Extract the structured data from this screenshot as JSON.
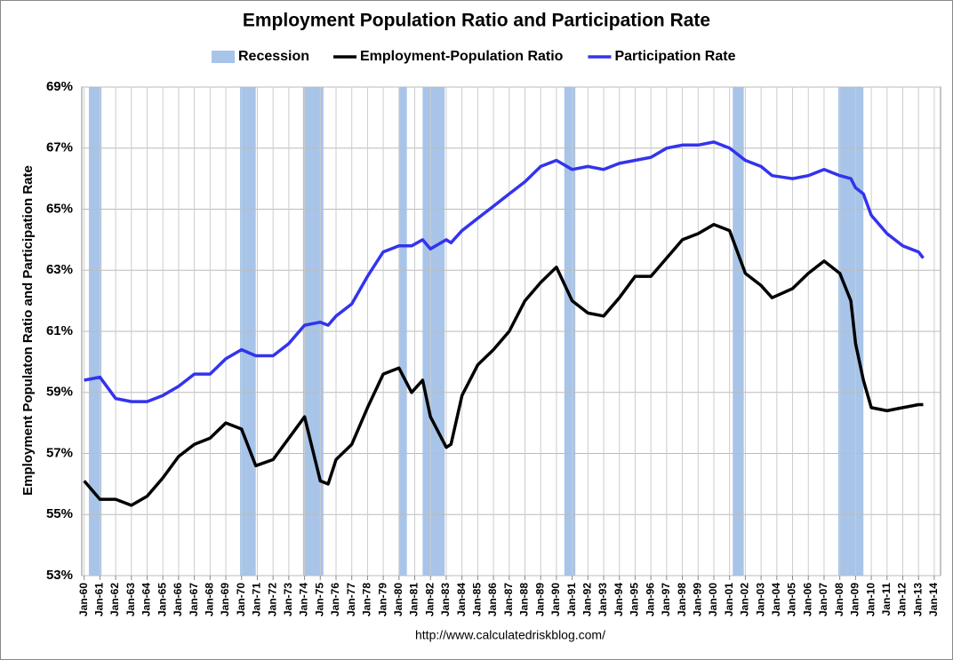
{
  "chart_data": {
    "type": "line",
    "title": "Employment Population Ratio and Participation Rate",
    "y_label": "Employment Populaton Ratio and Participation Rate",
    "source": "http://www.calculatedriskblog.com/",
    "recession": {
      "name": "Recession",
      "color": "#a8c4e8",
      "periods": [
        [
          1960.3,
          1961.1
        ],
        [
          1969.9,
          1970.9
        ],
        [
          1973.9,
          1975.2
        ],
        [
          1980.0,
          1980.5
        ],
        [
          1981.5,
          1982.9
        ],
        [
          1990.5,
          1991.2
        ],
        [
          2001.2,
          2001.9
        ],
        [
          2007.9,
          2009.5
        ]
      ]
    },
    "x": [
      1960,
      1961,
      1962,
      1963,
      1964,
      1965,
      1966,
      1967,
      1968,
      1969,
      1970,
      1970.9,
      1972,
      1973,
      1974,
      1975,
      1975.5,
      1976,
      1977,
      1978,
      1979,
      1980,
      1980.8,
      1981.5,
      1982,
      1983,
      1983.3,
      1984,
      1985,
      1986,
      1987,
      1988,
      1989,
      1990,
      1991,
      1992,
      1993,
      1994,
      1995,
      1996,
      1997,
      1998,
      1999,
      2000,
      2001,
      2002,
      2003,
      2003.7,
      2005,
      2006,
      2007,
      2008,
      2008.7,
      2009,
      2009.5,
      2010,
      2011,
      2012,
      2013,
      2013.3
    ],
    "series": [
      {
        "name": "Employment-Population Ratio",
        "color": "#000000",
        "values": [
          56.1,
          55.5,
          55.5,
          55.3,
          55.6,
          56.2,
          56.9,
          57.3,
          57.5,
          58.0,
          57.8,
          56.6,
          56.8,
          57.5,
          58.2,
          56.1,
          56.0,
          56.8,
          57.3,
          58.5,
          59.6,
          59.8,
          59.0,
          59.4,
          58.2,
          57.2,
          57.3,
          58.9,
          59.9,
          60.4,
          61.0,
          62.0,
          62.6,
          63.1,
          62.0,
          61.6,
          61.5,
          62.1,
          62.8,
          62.8,
          63.4,
          64.0,
          64.2,
          64.5,
          64.3,
          62.9,
          62.5,
          62.1,
          62.4,
          62.9,
          63.3,
          62.9,
          62.0,
          60.6,
          59.4,
          58.5,
          58.4,
          58.5,
          58.6,
          58.6
        ]
      },
      {
        "name": "Participation Rate",
        "color": "#3333ee",
        "values": [
          59.4,
          59.5,
          58.8,
          58.7,
          58.7,
          58.9,
          59.2,
          59.6,
          59.6,
          60.1,
          60.4,
          60.2,
          60.2,
          60.6,
          61.2,
          61.3,
          61.2,
          61.5,
          61.9,
          62.8,
          63.6,
          63.8,
          63.8,
          64.0,
          63.7,
          64.0,
          63.9,
          64.3,
          64.7,
          65.1,
          65.5,
          65.9,
          66.4,
          66.6,
          66.3,
          66.4,
          66.3,
          66.5,
          66.6,
          66.7,
          67.0,
          67.1,
          67.1,
          67.2,
          67.0,
          66.6,
          66.4,
          66.1,
          66.0,
          66.1,
          66.3,
          66.1,
          66.0,
          65.7,
          65.5,
          64.8,
          64.2,
          63.8,
          63.6,
          63.4
        ]
      }
    ],
    "xlim": [
      1959.85,
      2014.4
    ],
    "xticks": [
      {
        "value": 1960,
        "label": "Jan-60"
      },
      {
        "value": 1961,
        "label": "Jan-61"
      },
      {
        "value": 1962,
        "label": "Jan-62"
      },
      {
        "value": 1963,
        "label": "Jan-63"
      },
      {
        "value": 1964,
        "label": "Jan-64"
      },
      {
        "value": 1965,
        "label": "Jan-65"
      },
      {
        "value": 1966,
        "label": "Jan-66"
      },
      {
        "value": 1967,
        "label": "Jan-67"
      },
      {
        "value": 1968,
        "label": "Jan-68"
      },
      {
        "value": 1969,
        "label": "Jan-69"
      },
      {
        "value": 1970,
        "label": "Jan-70"
      },
      {
        "value": 1971,
        "label": "Jan-71"
      },
      {
        "value": 1972,
        "label": "Jan-72"
      },
      {
        "value": 1973,
        "label": "Jan-73"
      },
      {
        "value": 1974,
        "label": "Jan-74"
      },
      {
        "value": 1975,
        "label": "Jan-75"
      },
      {
        "value": 1976,
        "label": "Jan-76"
      },
      {
        "value": 1977,
        "label": "Jan-77"
      },
      {
        "value": 1978,
        "label": "Jan-78"
      },
      {
        "value": 1979,
        "label": "Jan-79"
      },
      {
        "value": 1980,
        "label": "Jan-80"
      },
      {
        "value": 1981,
        "label": "Jan-81"
      },
      {
        "value": 1982,
        "label": "Jan-82"
      },
      {
        "value": 1983,
        "label": "Jan-83"
      },
      {
        "value": 1984,
        "label": "Jan-84"
      },
      {
        "value": 1985,
        "label": "Jan-85"
      },
      {
        "value": 1986,
        "label": "Jan-86"
      },
      {
        "value": 1987,
        "label": "Jan-87"
      },
      {
        "value": 1988,
        "label": "Jan-88"
      },
      {
        "value": 1989,
        "label": "Jan-89"
      },
      {
        "value": 1990,
        "label": "Jan-90"
      },
      {
        "value": 1991,
        "label": "Jan-91"
      },
      {
        "value": 1992,
        "label": "Jan-92"
      },
      {
        "value": 1993,
        "label": "Jan-93"
      },
      {
        "value": 1994,
        "label": "Jan-94"
      },
      {
        "value": 1995,
        "label": "Jan-95"
      },
      {
        "value": 1996,
        "label": "Jan-96"
      },
      {
        "value": 1997,
        "label": "Jan-97"
      },
      {
        "value": 1998,
        "label": "Jan-98"
      },
      {
        "value": 1999,
        "label": "Jan-99"
      },
      {
        "value": 2000,
        "label": "Jan-00"
      },
      {
        "value": 2001,
        "label": "Jan-01"
      },
      {
        "value": 2002,
        "label": "Jan-02"
      },
      {
        "value": 2003,
        "label": "Jan-03"
      },
      {
        "value": 2004,
        "label": "Jan-04"
      },
      {
        "value": 2005,
        "label": "Jan-05"
      },
      {
        "value": 2006,
        "label": "Jan-06"
      },
      {
        "value": 2007,
        "label": "Jan-07"
      },
      {
        "value": 2008,
        "label": "Jan-08"
      },
      {
        "value": 2009,
        "label": "Jan-09"
      },
      {
        "value": 2010,
        "label": "Jan-10"
      },
      {
        "value": 2011,
        "label": "Jan-11"
      },
      {
        "value": 2012,
        "label": "Jan-12"
      },
      {
        "value": 2013,
        "label": "Jan-13"
      },
      {
        "value": 2014,
        "label": "Jan-14"
      }
    ],
    "ylim": [
      53,
      69
    ],
    "yticks": [
      {
        "value": 53,
        "label": "53%"
      },
      {
        "value": 55,
        "label": "55%"
      },
      {
        "value": 57,
        "label": "57%"
      },
      {
        "value": 59,
        "label": "59%"
      },
      {
        "value": 61,
        "label": "61%"
      },
      {
        "value": 63,
        "label": "63%"
      },
      {
        "value": 65,
        "label": "65%"
      },
      {
        "value": 67,
        "label": "67%"
      },
      {
        "value": 69,
        "label": "69%"
      }
    ],
    "grid": true
  }
}
